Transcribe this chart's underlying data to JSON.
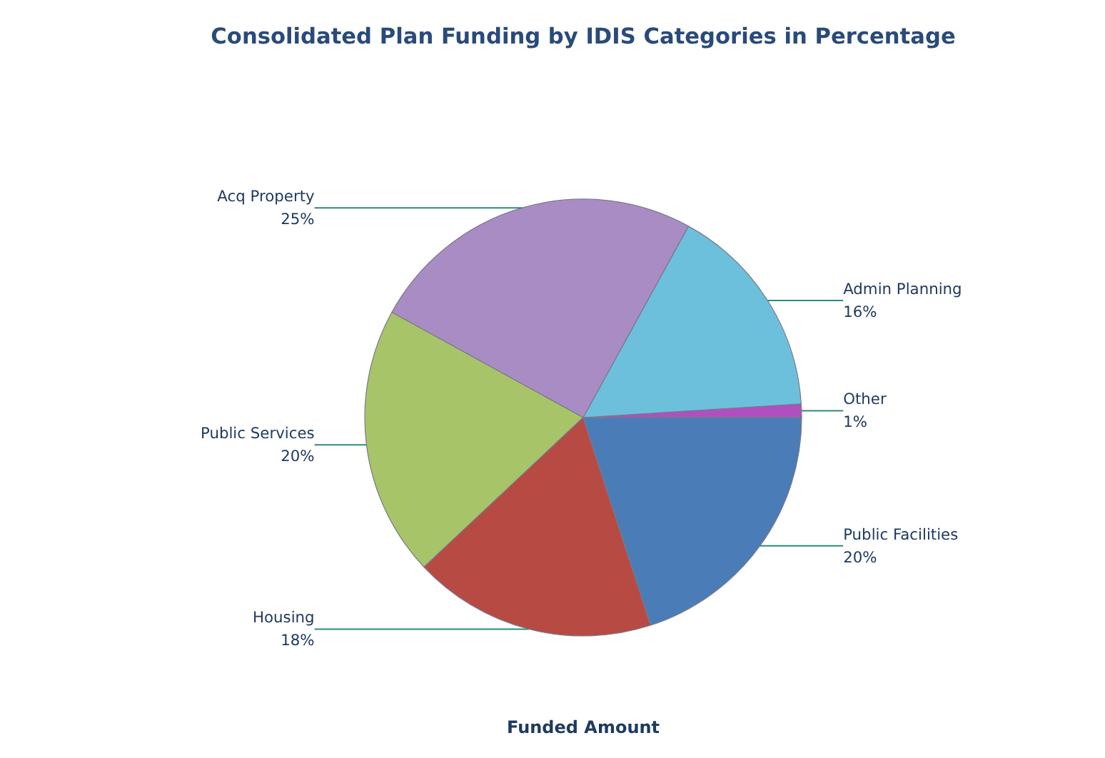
{
  "chart_data": {
    "type": "pie",
    "title": "Consolidated Plan Funding by IDIS Categories in Percentage",
    "xlabel": "Funded Amount",
    "categories": [
      "Other",
      "Admin Planning",
      "Acq Property",
      "Public Services",
      "Housing",
      "Public Facilities"
    ],
    "values": [
      1,
      16,
      25,
      20,
      18,
      20
    ],
    "value_labels": [
      "1%",
      "16%",
      "25%",
      "20%",
      "18%",
      "20%"
    ],
    "colors": [
      "#b04fc0",
      "#6cc0dc",
      "#a98cc4",
      "#a8c468",
      "#b84a44",
      "#4a7cb8"
    ]
  }
}
